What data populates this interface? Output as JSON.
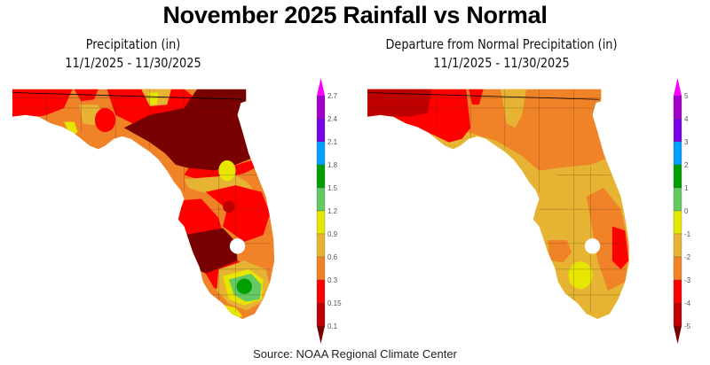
{
  "title": "November 2025 Rainfall vs Normal",
  "source": "Source:  NOAA Regional Climate Center",
  "panels": {
    "left": {
      "title": "Precipitation (in)",
      "date_range": "11/1/2025 - 11/30/2025",
      "legend": {
        "unit": "in",
        "labels": [
          "2.7",
          "2.4",
          "2.1",
          "1.8",
          "1.5",
          "1.2",
          "0.9",
          "0.6",
          "0.3",
          "0.15",
          "0.1"
        ],
        "colors": [
          "#ff00ff",
          "#a000c8",
          "#7800e6",
          "#00a0ff",
          "#00a000",
          "#64c864",
          "#e6e600",
          "#e6b432",
          "#f08228",
          "#ff0000",
          "#c00000",
          "#780000"
        ]
      }
    },
    "right": {
      "title": "Departure from Normal Precipitation (in)",
      "date_range": "11/1/2025 - 11/30/2025",
      "legend": {
        "unit": "in",
        "labels": [
          "5",
          "4",
          "3",
          "2",
          "1",
          "0",
          "-1",
          "-2",
          "-3",
          "-4",
          "-5"
        ],
        "colors": [
          "#ff00ff",
          "#a000c8",
          "#7800e6",
          "#00a0ff",
          "#00a000",
          "#64c864",
          "#e6e600",
          "#e6b432",
          "#f08228",
          "#ff0000",
          "#c00000",
          "#780000"
        ]
      }
    }
  },
  "map_features": {
    "left": {
      "dominant": "very dry across north and central Florida (under 0.1 in) with isolated wetter pockets",
      "wettest_area": "southeast Florida near Miami-Dade (1.5-1.8 in)"
    },
    "right": {
      "dominant": "below normal statewide (-1 to -3 in)",
      "driest_area": "western Panhandle (-4 to -5 in) and southeast coast (-3 to -4 in)"
    }
  }
}
